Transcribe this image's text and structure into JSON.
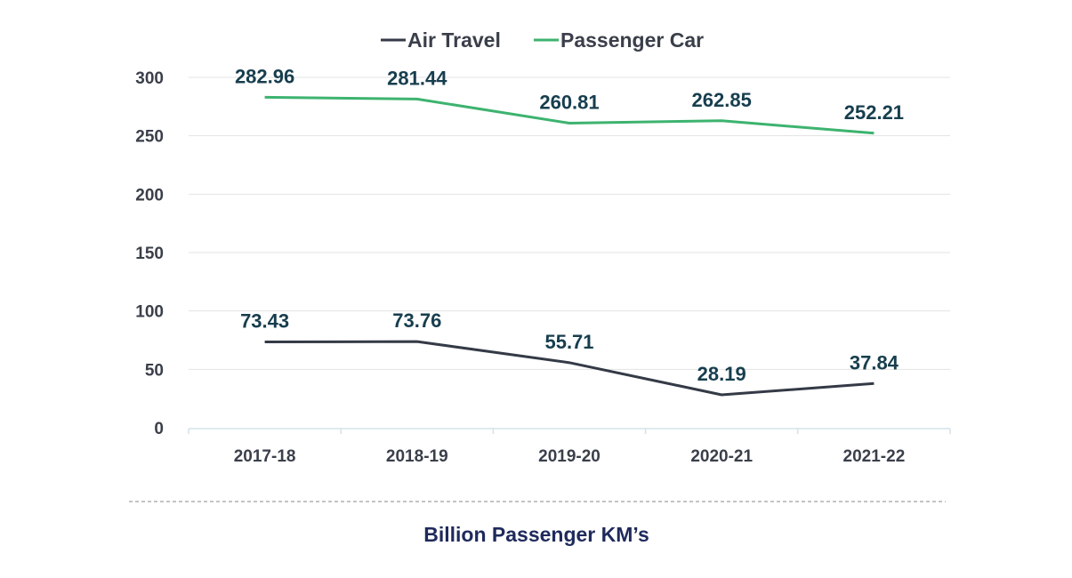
{
  "colors": {
    "air_travel": "#343a46",
    "passenger_car": "#3db36f",
    "grid": "#e3e3e3",
    "axis": "#d4e3e8",
    "label": "#173e4e"
  },
  "caption": "Billion Passenger KM’s",
  "chart_data": {
    "type": "line",
    "categories": [
      "2017-18",
      "2018-19",
      "2019-20",
      "2020-21",
      "2021-22"
    ],
    "series": [
      {
        "name": "Air Travel",
        "values": [
          73.43,
          73.76,
          55.71,
          28.19,
          37.84
        ],
        "labels": [
          "73.43",
          "73.76",
          "55.71",
          "28.19",
          "37.84"
        ]
      },
      {
        "name": "Passenger Car",
        "values": [
          282.96,
          281.44,
          260.81,
          262.85,
          252.21
        ],
        "labels": [
          "282.96",
          "281.44",
          "260.81",
          "262.85",
          "252.21"
        ]
      }
    ],
    "yticks": [
      "0",
      "50",
      "100",
      "150",
      "200",
      "250",
      "300"
    ],
    "ylim": [
      0,
      300
    ],
    "grid": true,
    "legend": "top-center"
  }
}
